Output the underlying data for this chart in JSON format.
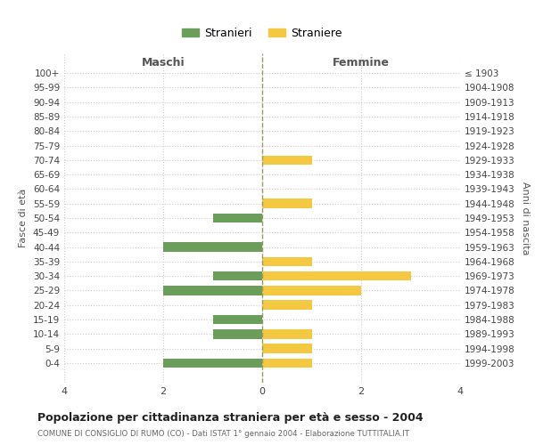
{
  "age_groups": [
    "100+",
    "95-99",
    "90-94",
    "85-89",
    "80-84",
    "75-79",
    "70-74",
    "65-69",
    "60-64",
    "55-59",
    "50-54",
    "45-49",
    "40-44",
    "35-39",
    "30-34",
    "25-29",
    "20-24",
    "15-19",
    "10-14",
    "5-9",
    "0-4"
  ],
  "birth_years": [
    "≤ 1903",
    "1904-1908",
    "1909-1913",
    "1914-1918",
    "1919-1923",
    "1924-1928",
    "1929-1933",
    "1934-1938",
    "1939-1943",
    "1944-1948",
    "1949-1953",
    "1954-1958",
    "1959-1963",
    "1964-1968",
    "1969-1973",
    "1974-1978",
    "1979-1983",
    "1984-1988",
    "1989-1993",
    "1994-1998",
    "1999-2003"
  ],
  "maschi": [
    0,
    0,
    0,
    0,
    0,
    0,
    0,
    0,
    0,
    0,
    1,
    0,
    2,
    0,
    1,
    2,
    0,
    1,
    1,
    0,
    2
  ],
  "femmine": [
    0,
    0,
    0,
    0,
    0,
    0,
    1,
    0,
    0,
    1,
    0,
    0,
    0,
    1,
    3,
    2,
    1,
    0,
    1,
    1,
    1
  ],
  "color_maschi": "#6a9e5a",
  "color_femmine": "#f5c842",
  "title": "Popolazione per cittadinanza straniera per età e sesso - 2004",
  "subtitle": "COMUNE DI CONSIGLIO DI RUMO (CO) - Dati ISTAT 1° gennaio 2004 - Elaborazione TUTTITALIA.IT",
  "label_maschi": "Stranieri",
  "label_femmine": "Straniere",
  "xlabel_left": "Maschi",
  "xlabel_right": "Femmine",
  "ylabel_left": "Fasce di età",
  "ylabel_right": "Anni di nascita",
  "xlim": 4,
  "background_color": "#ffffff",
  "grid_color": "#cccccc"
}
